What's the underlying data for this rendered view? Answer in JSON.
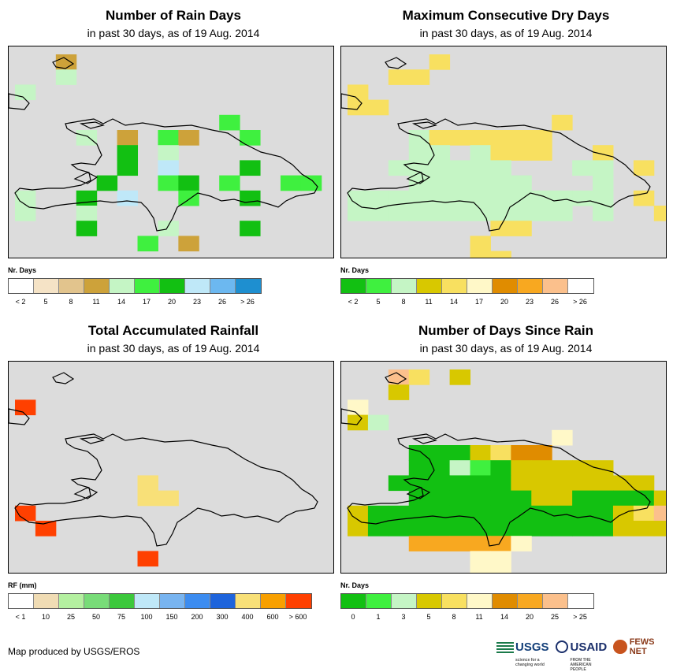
{
  "panels": [
    {
      "id": "rain_days",
      "title": "Number of Rain Days",
      "subtitle": "in past 30 days, as of 19 Aug. 2014",
      "legend_title": "Nr. Days",
      "legend_colors": [
        "#ffffff",
        "#f5e3c6",
        "#e2c48d",
        "#cda23a",
        "#c5f5c5",
        "#3ff03f",
        "#12c012",
        "#bfe8f8",
        "#6cb8f0",
        "#1e8fd0"
      ],
      "legend_labels": [
        "< 2",
        "5",
        "8",
        "11",
        "14",
        "17",
        "20",
        "23",
        "26",
        "> 26"
      ],
      "grid": [
        "..3..ss.........",
        "..4hh...........",
        "4...............",
        "hh..............",
        "..........5.....",
        "...4j3d53dd5....",
        "...jh6a4bbbaaa..",
        "..shc6g7ahd6cgg.",
        "....6aa56b5ac55..",
        "4aa6c7dc5eb6cgaa",
        "4aa4hadaddbhahcg",
        "...6.h.4...6...",
        "......5h3......",
        "......aa......."
      ]
    },
    {
      "id": "max_dry_days",
      "title": "Maximum Consecutive Dry Days",
      "subtitle": "in past 30 days, as of 19 Aug. 2014",
      "legend_title": "Nr. Days",
      "legend_colors": [
        "#12c012",
        "#3ff03f",
        "#c5f5c5",
        "#d8c800",
        "#f8e060",
        "#fff8c8",
        "#e08c00",
        "#f8a820",
        "#fbc08c",
        "#ffffff"
      ],
      "legend_labels": [
        "< 2",
        "5",
        "8",
        "11",
        "14",
        "17",
        "20",
        "23",
        "26",
        "> 26"
      ],
      "grid": [
        "..ee4...........",
        "..44............",
        "4...............",
        "44..............",
        "..........4.....",
        "...2444444.......",
        "...22d2444aa4...",
        "..222222ddd22d4.",
        "...222222bbd2...",
        "2222222222222c4.",
        "22222222222c2ce4",
        "...c.aa44......",
        "......4c.......",
        "......44......."
      ]
    },
    {
      "id": "total_rainfall",
      "title": "Total Accumulated Rainfall",
      "subtitle": "in past 30 days, as of 19 Aug. 2014",
      "legend_title": "RF (mm)",
      "legend_colors": [
        "#ffffff",
        "#f0dcb4",
        "#b4f0a0",
        "#78dc78",
        "#3cc83c",
        "#bfe8f8",
        "#78b4f0",
        "#3c8cf0",
        "#1e64dc",
        "#f8e078",
        "#f8a000",
        "#ff4000"
      ],
      "legend_labels": [
        "< 1",
        "10",
        "25",
        "50",
        "75",
        "100",
        "150",
        "200",
        "300",
        "400",
        "600",
        "> 600"
      ],
      "grid": [
        "..cc.cc.........",
        "..cc............",
        "bc..............",
        "cc..............",
        "..........c.....",
        "...ccccccdcc....",
        "...ffggcddccff..",
        "..ggff9ghhddhghd",
        "...fgg99ggdgghgg",
        "bfghhhhgggggfhgf",
        "cbccdeeeecdfcdfg",
        "...fdcdccc.....",
        "......bcc......",
        "......ccc......"
      ]
    },
    {
      "id": "days_since_rain",
      "title": "Number of Days Since Rain",
      "subtitle": "in past 30 days, as of 19 Aug. 2014",
      "legend_title": "Nr. Days",
      "legend_colors": [
        "#12c012",
        "#3ff03f",
        "#c5f5c5",
        "#d8c800",
        "#f8e060",
        "#fff8c8",
        "#e08c00",
        "#f8a820",
        "#fbc08c",
        "#ffffff"
      ],
      "legend_labels": [
        "0",
        "1",
        "3",
        "5",
        "8",
        "11",
        "14",
        "20",
        "25",
        "> 25"
      ],
      "grid": [
        "..84.3..........",
        "..3.............",
        "5...............",
        "32..............",
        "..........5.....",
        "...0003466......",
        "...0021033333...",
        "..0000003333333.",
        "...0000003300003",
        "3000000000000348",
        "3000000000000333",
        "...777775......",
        "......55.......",
        "......55......."
      ]
    }
  ],
  "footer": "Map produced by USGS/EROS",
  "logos": {
    "usgs": "USGS",
    "usgs_tagline": "science for a changing world",
    "usaid": "USAID",
    "usaid_tagline": "FROM THE AMERICAN PEOPLE",
    "fews": "FEWS NET"
  }
}
